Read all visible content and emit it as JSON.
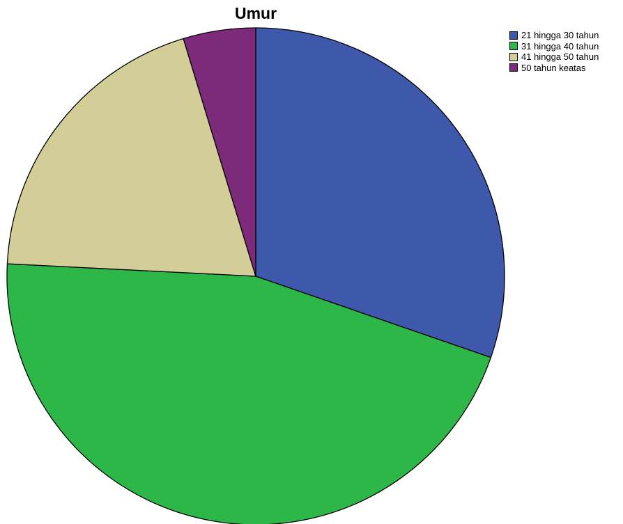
{
  "chart_data": {
    "type": "pie",
    "title": "Umur",
    "categories": [
      "21 hingga 30 tahun",
      "31 hingga 40 tahun",
      "41 hingga 50 tahun",
      "50 tahun keatas"
    ],
    "values": [
      30.3,
      45.5,
      19.5,
      4.7
    ],
    "colors": [
      "#3e58ac",
      "#2eb749",
      "#d3ce98",
      "#7d2a7b"
    ],
    "start": "12 o'clock",
    "direction": "clockwise",
    "legend_position": "top-right"
  }
}
